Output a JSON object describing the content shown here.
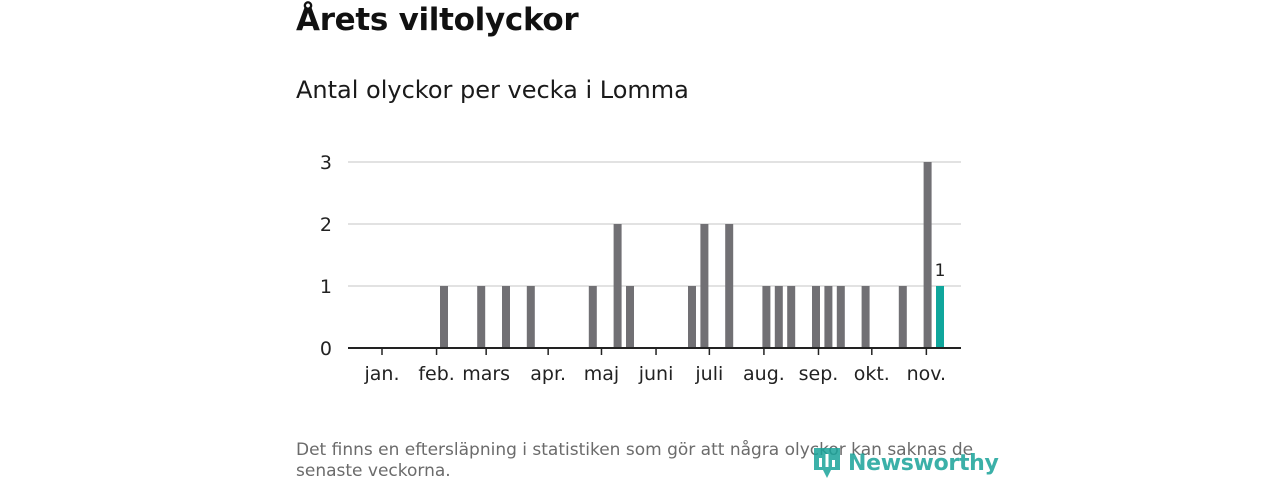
{
  "title": "Årets viltolyckor",
  "subtitle": "Antal olyckor per vecka i Lomma",
  "footnote": "Det finns en eftersläpning i statistiken som gör att några olyckor kan saknas de senaste veckorna.",
  "logo": {
    "text": "Newsworthy",
    "icon": "newsworthy-logo-icon"
  },
  "colors": {
    "bar": "#717074",
    "highlight": "#0fa69c",
    "grid": "#d9d9d9",
    "axis": "#222222"
  },
  "chart_data": {
    "type": "bar",
    "title": "Antal olyckor per vecka i Lomma",
    "xlabel": "",
    "ylabel": "",
    "ylim": [
      0,
      3
    ],
    "yticks": [
      0,
      1,
      2,
      3
    ],
    "grid": true,
    "week_range": [
      1,
      48
    ],
    "month_ticks": [
      {
        "label": "jan.",
        "week": 1
      },
      {
        "label": "feb.",
        "week": 5.4
      },
      {
        "label": "mars",
        "week": 9.4
      },
      {
        "label": "apr.",
        "week": 14.4
      },
      {
        "label": "maj",
        "week": 18.7
      },
      {
        "label": "juni",
        "week": 23.1
      },
      {
        "label": "juli",
        "week": 27.4
      },
      {
        "label": "aug.",
        "week": 31.8
      },
      {
        "label": "sep.",
        "week": 36.2
      },
      {
        "label": "okt.",
        "week": 40.5
      },
      {
        "label": "nov.",
        "week": 44.9
      }
    ],
    "bars": [
      {
        "week": 6,
        "value": 1
      },
      {
        "week": 9,
        "value": 1
      },
      {
        "week": 11,
        "value": 1
      },
      {
        "week": 13,
        "value": 1
      },
      {
        "week": 18,
        "value": 1
      },
      {
        "week": 20,
        "value": 2
      },
      {
        "week": 21,
        "value": 1
      },
      {
        "week": 26,
        "value": 1
      },
      {
        "week": 27,
        "value": 2
      },
      {
        "week": 29,
        "value": 2
      },
      {
        "week": 32,
        "value": 1
      },
      {
        "week": 33,
        "value": 1
      },
      {
        "week": 34,
        "value": 1
      },
      {
        "week": 36,
        "value": 1
      },
      {
        "week": 37,
        "value": 1
      },
      {
        "week": 38,
        "value": 1
      },
      {
        "week": 40,
        "value": 1
      },
      {
        "week": 43,
        "value": 1
      },
      {
        "week": 45,
        "value": 3
      },
      {
        "week": 46,
        "value": 1,
        "highlight": true,
        "label": "1"
      }
    ]
  }
}
